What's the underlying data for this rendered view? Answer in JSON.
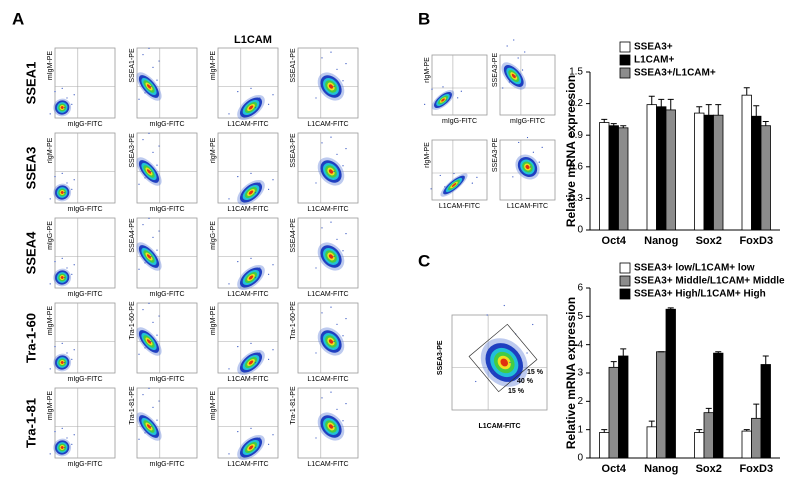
{
  "panel_a": {
    "label": "A",
    "title": "L1CAM",
    "rows": [
      {
        "label": "SSEA1",
        "plots": [
          {
            "y": "mIgM-PE",
            "x": "mIgG-FITC"
          },
          {
            "y": "SSEA1-PE",
            "x": "mIgG-FITC"
          },
          {
            "y": "mIgM-PE",
            "x": "L1CAM-FITC"
          },
          {
            "y": "SSEA1-PE",
            "x": "L1CAM-FITC"
          }
        ]
      },
      {
        "label": "SSEA3",
        "plots": [
          {
            "y": "rIgM-PE",
            "x": "mIgG-FITC"
          },
          {
            "y": "SSEA3-PE",
            "x": "mIgG-FITC"
          },
          {
            "y": "rIgM-PE",
            "x": "L1CAM-FITC"
          },
          {
            "y": "SSEA3-PE",
            "x": "L1CAM-FITC"
          }
        ]
      },
      {
        "label": "SSEA4",
        "plots": [
          {
            "y": "mIgG-PE",
            "x": "mIgG-FITC"
          },
          {
            "y": "SSEA4-PE",
            "x": "mIgG-FITC"
          },
          {
            "y": "mIgG-PE",
            "x": "L1CAM-FITC"
          },
          {
            "y": "SSEA4-PE",
            "x": "L1CAM-FITC"
          }
        ]
      },
      {
        "label": "Tra-1-60",
        "plots": [
          {
            "y": "mIgM-PE",
            "x": "mIgG-FITC"
          },
          {
            "y": "Tra-1-60-PE",
            "x": "mIgG-FITC"
          },
          {
            "y": "mIgM-PE",
            "x": "L1CAM-FITC"
          },
          {
            "y": "Tra-1-60-PE",
            "x": "L1CAM-FITC"
          }
        ]
      },
      {
        "label": "Tra-1-81",
        "plots": [
          {
            "y": "mIgM-PE",
            "x": "mIgG-FITC"
          },
          {
            "y": "Tra-1-81-PE",
            "x": "mIgG-FITC"
          },
          {
            "y": "mIgM-PE",
            "x": "L1CAM-FITC"
          },
          {
            "y": "Tra-1-81-PE",
            "x": "L1CAM-FITC"
          }
        ]
      }
    ]
  },
  "panel_b": {
    "label": "B",
    "plots": [
      {
        "y": "rIgM-PE",
        "x": "mIgG-FITC"
      },
      {
        "y": "SSEA3-PE",
        "x": "mIgG-FITC"
      },
      {
        "y": "rIgM-PE",
        "x": "L1CAM-FITC"
      },
      {
        "y": "SSEA3-PE",
        "x": "L1CAM-FITC"
      }
    ]
  },
  "panel_c": {
    "label": "C",
    "plot": {
      "y": "SSEA3-PE",
      "x": "L1CAM-FITC",
      "annotations": [
        "15 %",
        "40 %",
        "15 %"
      ]
    }
  },
  "chart_data": [
    {
      "type": "bar",
      "y_label": "Relative mRNA expression",
      "categories": [
        "Oct4",
        "Nanog",
        "Sox2",
        "FoxD3"
      ],
      "ylim": [
        0,
        1.5
      ],
      "yticks": [
        0,
        0.3,
        0.6,
        0.9,
        1.2,
        1.5
      ],
      "series": [
        {
          "name": "SSEA3+",
          "color": "#ffffff",
          "values": [
            1.02,
            1.19,
            1.11,
            1.28
          ],
          "errors": [
            0.03,
            0.08,
            0.06,
            0.07
          ]
        },
        {
          "name": "L1CAM+",
          "color": "#000000",
          "values": [
            0.99,
            1.17,
            1.09,
            1.08
          ],
          "errors": [
            0.02,
            0.07,
            0.1,
            0.1
          ]
        },
        {
          "name": "SSEA3+/L1CAM+",
          "color": "#8c8c8c",
          "values": [
            0.97,
            1.14,
            1.09,
            0.99
          ],
          "errors": [
            0.02,
            0.1,
            0.1,
            0.04
          ]
        }
      ]
    },
    {
      "type": "bar",
      "y_label": "Relative mRNA expression",
      "categories": [
        "Oct4",
        "Nanog",
        "Sox2",
        "FoxD3"
      ],
      "ylim": [
        0,
        6
      ],
      "yticks": [
        0,
        1,
        2,
        3,
        4,
        5,
        6
      ],
      "series": [
        {
          "name": "SSEA3+ low/L1CAM+ low",
          "color": "#ffffff",
          "values": [
            0.9,
            1.1,
            0.9,
            0.95
          ],
          "errors": [
            0.1,
            0.2,
            0.1,
            0.05
          ]
        },
        {
          "name": "SSEA3+ Middle/L1CAM+ Middle",
          "color": "#8c8c8c",
          "values": [
            3.2,
            3.75,
            1.6,
            1.4
          ],
          "errors": [
            0.2,
            0,
            0.15,
            0.5
          ]
        },
        {
          "name": "SSEA3+ High/L1CAM+ High",
          "color": "#000000",
          "values": [
            3.6,
            5.25,
            3.7,
            3.3
          ],
          "errors": [
            0.25,
            0.05,
            0.05,
            0.3
          ]
        }
      ]
    }
  ]
}
